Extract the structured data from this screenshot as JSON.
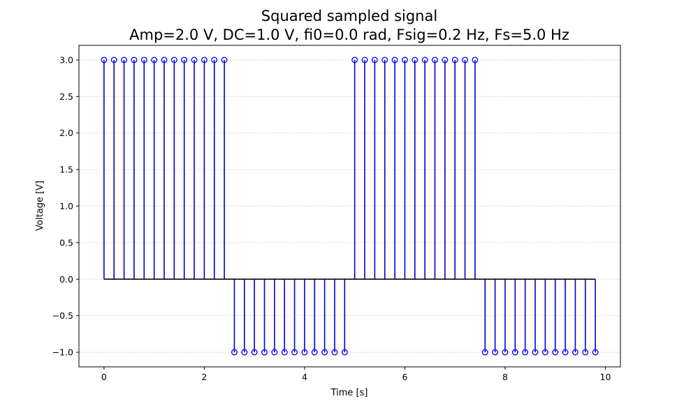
{
  "chart_data": {
    "type": "stem",
    "title": "Squared sampled signal",
    "subtitle": "Amp=2.0 V, DC=1.0 V, fi0=0.0 rad, Fsig=0.2 Hz, Fs=5.0 Hz",
    "xlabel": "Time [s]",
    "ylabel": "Voltage [V]",
    "xlim": [
      -0.5,
      10.3
    ],
    "ylim": [
      -1.2,
      3.2
    ],
    "xticks": [
      0,
      2,
      4,
      6,
      8,
      10
    ],
    "xtick_labels": [
      "0",
      "2",
      "4",
      "6",
      "8",
      "10"
    ],
    "yticks": [
      -1.0,
      -0.5,
      0.0,
      0.5,
      1.0,
      1.5,
      2.0,
      2.5,
      3.0
    ],
    "ytick_labels": [
      "−1.0",
      "−0.5",
      "0.0",
      "0.5",
      "1.0",
      "1.5",
      "2.0",
      "2.5",
      "3.0"
    ],
    "grid": "y-dotted",
    "marker_color": "#0000ff",
    "stem_color": "#0000cd",
    "baseline_color": "#000000",
    "baseline": 0,
    "x": [
      0,
      0.2,
      0.4,
      0.6,
      0.8,
      1.0,
      1.2,
      1.4,
      1.6,
      1.8,
      2.0,
      2.2,
      2.4,
      2.6,
      2.8,
      3.0,
      3.2,
      3.4,
      3.6,
      3.8,
      4.0,
      4.2,
      4.4,
      4.6,
      4.8,
      5.0,
      5.2,
      5.4,
      5.6,
      5.8,
      6.0,
      6.2,
      6.4,
      6.6,
      6.8,
      7.0,
      7.2,
      7.4,
      7.6,
      7.8,
      8.0,
      8.2,
      8.4,
      8.6,
      8.8,
      9.0,
      9.2,
      9.4,
      9.6,
      9.8
    ],
    "y": [
      3,
      3,
      3,
      3,
      3,
      3,
      3,
      3,
      3,
      3,
      3,
      3,
      3,
      -1,
      -1,
      -1,
      -1,
      -1,
      -1,
      -1,
      -1,
      -1,
      -1,
      -1,
      -1,
      3,
      3,
      3,
      3,
      3,
      3,
      3,
      3,
      3,
      3,
      3,
      3,
      3,
      -1,
      -1,
      -1,
      -1,
      -1,
      -1,
      -1,
      -1,
      -1,
      -1,
      -1,
      -1
    ]
  }
}
